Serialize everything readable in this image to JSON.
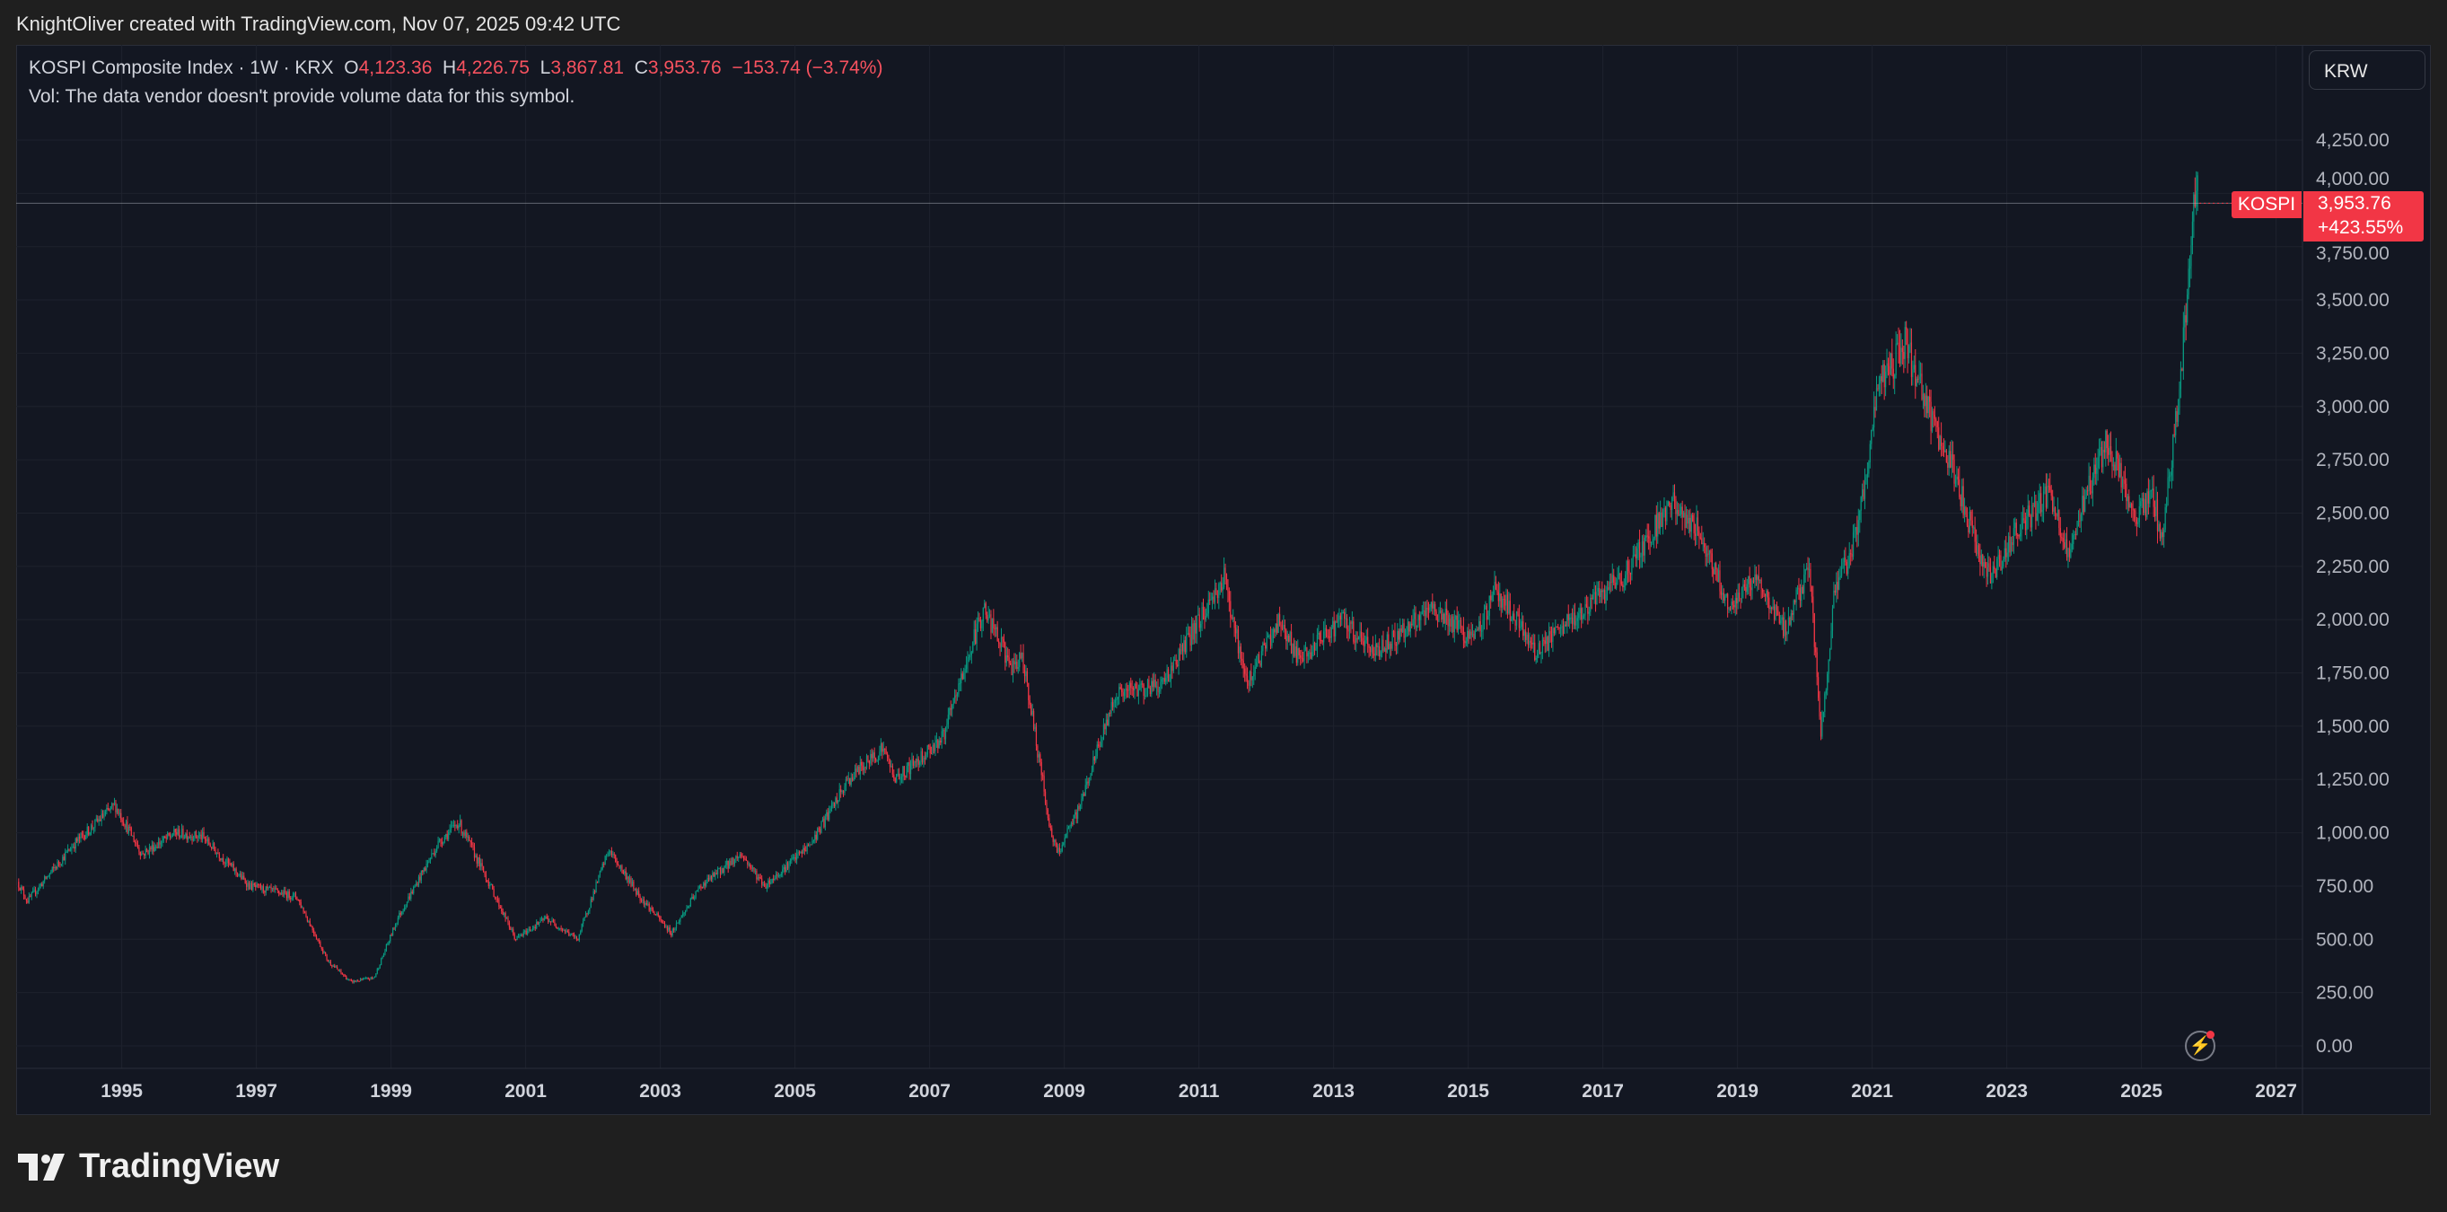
{
  "caption": "KnightOliver created with TradingView.com, Nov 07, 2025 09:42 UTC",
  "legend": {
    "symbol": "KOSPI Composite Index · 1W · KRX",
    "open_label": "O",
    "open": "4,123.36",
    "high_label": "H",
    "high": "4,226.75",
    "low_label": "L",
    "low": "3,867.81",
    "close_label": "C",
    "close": "3,953.76",
    "change": "−153.74 (−3.74%)",
    "volume_note": "Vol: The data vendor doesn't provide volume data for this symbol."
  },
  "currency_button": "KRW",
  "price_tag": {
    "symbol": "KOSPI",
    "price": "3,953.76",
    "change_pct": "+423.55%"
  },
  "brand": "TradingView",
  "icons": {
    "watermark": "lightning-icon",
    "logo": "tradingview-logo-icon"
  },
  "colors": {
    "up": "#089981",
    "down": "#f23645",
    "background": "#131722",
    "grid": "#1e222d"
  },
  "chart_data": {
    "type": "candlestick",
    "title": "KOSPI Composite Index · 1W · KRX",
    "interval": "1W",
    "ylim": [
      0,
      4250
    ],
    "y_ticks": [
      "0.00",
      "250.00",
      "500.00",
      "750.00",
      "1,000.00",
      "1,250.00",
      "1,500.00",
      "1,750.00",
      "2,000.00",
      "2,250.00",
      "2,500.00",
      "2,750.00",
      "3,000.00",
      "3,250.00",
      "3,500.00",
      "3,750.00",
      "4,000.00",
      "4,250.00"
    ],
    "x_ticks": [
      "1995",
      "1997",
      "1999",
      "2001",
      "2003",
      "2005",
      "2007",
      "2009",
      "2011",
      "2013",
      "2015",
      "2017",
      "2019",
      "2021",
      "2023",
      "2025",
      "2027"
    ],
    "grid": true,
    "current_price": 3953.76,
    "approx_close_path": [
      [
        1993.45,
        770
      ],
      [
        1993.6,
        680
      ],
      [
        1994.3,
        950
      ],
      [
        1994.9,
        1130
      ],
      [
        1995.3,
        900
      ],
      [
        1995.8,
        1000
      ],
      [
        1996.2,
        980
      ],
      [
        1996.9,
        750
      ],
      [
        1997.6,
        700
      ],
      [
        1998.06,
        400
      ],
      [
        1998.4,
        300
      ],
      [
        1998.75,
        320
      ],
      [
        1999.1,
        600
      ],
      [
        1999.7,
        950
      ],
      [
        2000.0,
        1050
      ],
      [
        2000.4,
        800
      ],
      [
        2000.85,
        500
      ],
      [
        2001.3,
        600
      ],
      [
        2001.77,
        500
      ],
      [
        2002.23,
        920
      ],
      [
        2002.7,
        700
      ],
      [
        2003.16,
        530
      ],
      [
        2003.6,
        750
      ],
      [
        2004.2,
        900
      ],
      [
        2004.55,
        750
      ],
      [
        2005.24,
        950
      ],
      [
        2005.8,
        1250
      ],
      [
        2006.3,
        1400
      ],
      [
        2006.5,
        1250
      ],
      [
        2007.2,
        1450
      ],
      [
        2007.8,
        2050
      ],
      [
        2008.26,
        1750
      ],
      [
        2008.37,
        1850
      ],
      [
        2008.8,
        1000
      ],
      [
        2008.9,
        900
      ],
      [
        2009.2,
        1100
      ],
      [
        2009.76,
        1650
      ],
      [
        2010.46,
        1700
      ],
      [
        2011.38,
        2200
      ],
      [
        2011.7,
        1700
      ],
      [
        2012.2,
        2000
      ],
      [
        2012.5,
        1800
      ],
      [
        2013.1,
        2000
      ],
      [
        2013.6,
        1850
      ],
      [
        2014.5,
        2050
      ],
      [
        2015.1,
        1900
      ],
      [
        2015.4,
        2150
      ],
      [
        2016.0,
        1850
      ],
      [
        2017.3,
        2200
      ],
      [
        2018.0,
        2550
      ],
      [
        2018.45,
        2400
      ],
      [
        2018.9,
        2050
      ],
      [
        2019.26,
        2200
      ],
      [
        2019.7,
        1950
      ],
      [
        2020.07,
        2250
      ],
      [
        2020.24,
        1450
      ],
      [
        2020.43,
        2100
      ],
      [
        2020.77,
        2400
      ],
      [
        2021.1,
        3100
      ],
      [
        2021.5,
        3300
      ],
      [
        2021.8,
        3000
      ],
      [
        2022.2,
        2700
      ],
      [
        2022.6,
        2300
      ],
      [
        2022.8,
        2200
      ],
      [
        2023.1,
        2400
      ],
      [
        2023.65,
        2600
      ],
      [
        2023.9,
        2300
      ],
      [
        2024.3,
        2700
      ],
      [
        2024.5,
        2850
      ],
      [
        2024.9,
        2450
      ],
      [
        2025.17,
        2600
      ],
      [
        2025.3,
        2350
      ],
      [
        2025.5,
        2900
      ],
      [
        2025.6,
        3200
      ],
      [
        2025.82,
        4123.36
      ],
      [
        2025.85,
        3953.76
      ]
    ]
  }
}
